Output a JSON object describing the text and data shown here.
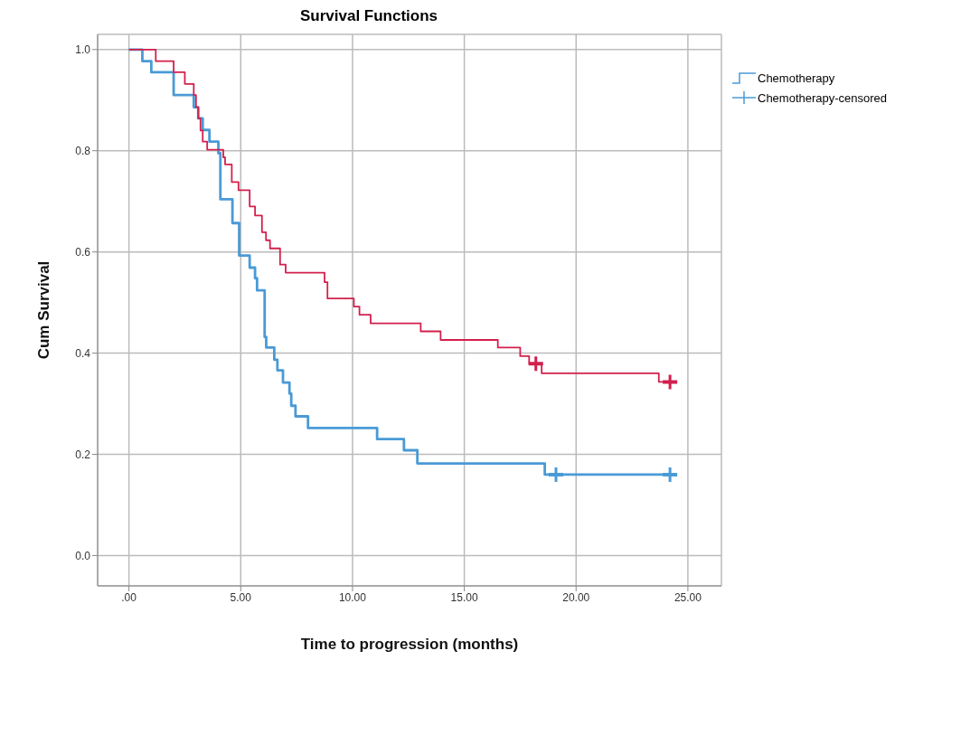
{
  "chart_data": {
    "type": "step",
    "title": "Survival Functions",
    "xlabel": "Time to progression (months)",
    "ylabel": "Cum Survival",
    "xlim": [
      -1.4,
      26.5
    ],
    "ylim": [
      -0.06,
      1.03
    ],
    "xticks": [
      {
        "value": 0,
        "label": ".00"
      },
      {
        "value": 5,
        "label": "5.00"
      },
      {
        "value": 10,
        "label": "10.00"
      },
      {
        "value": 15,
        "label": "15.00"
      },
      {
        "value": 20,
        "label": "20.00"
      },
      {
        "value": 25,
        "label": "25.00"
      }
    ],
    "yticks": [
      {
        "value": 0,
        "label": "0.0"
      },
      {
        "value": 0.2,
        "label": "0.2"
      },
      {
        "value": 0.4,
        "label": "0.4"
      },
      {
        "value": 0.6,
        "label": "0.6"
      },
      {
        "value": 0.8,
        "label": "0.8"
      },
      {
        "value": 1,
        "label": "1.0"
      }
    ],
    "grid": true,
    "legend": "right",
    "series": [
      {
        "name": "Chemotherapy",
        "color": "#4a9ad6",
        "marker": "none",
        "x": [
          0,
          0.6,
          1.0,
          2.0,
          2.9,
          3.1,
          3.3,
          3.6,
          4.0,
          4.09,
          4.63,
          4.93,
          5.4,
          5.64,
          5.73,
          6.07,
          6.14,
          6.5,
          6.64,
          6.89,
          7.18,
          7.26,
          7.45,
          8.01,
          11.1,
          12.3,
          12.9,
          18.6,
          24.2
        ],
        "values": [
          1.0,
          0.977,
          0.955,
          0.91,
          0.886,
          0.864,
          0.841,
          0.818,
          0.795,
          0.704,
          0.657,
          0.593,
          0.569,
          0.548,
          0.524,
          0.432,
          0.411,
          0.387,
          0.366,
          0.342,
          0.32,
          0.296,
          0.275,
          0.252,
          0.23,
          0.208,
          0.182,
          0.16,
          0.16
        ]
      },
      {
        "color": "#d2204d",
        "marker": "none",
        "x": [
          0,
          1.2,
          2.0,
          2.5,
          2.9,
          3.0,
          3.1,
          3.2,
          3.3,
          3.5,
          4.22,
          4.3,
          4.6,
          4.9,
          5.4,
          5.64,
          5.95,
          6.13,
          6.31,
          6.76,
          7.01,
          8.75,
          8.88,
          10.06,
          10.31,
          10.81,
          13.05,
          13.94,
          16.5,
          17.5,
          17.9,
          18.46,
          23.7,
          24.2
        ],
        "values": [
          1.0,
          0.977,
          0.955,
          0.932,
          0.91,
          0.886,
          0.864,
          0.84,
          0.818,
          0.802,
          0.787,
          0.773,
          0.738,
          0.722,
          0.69,
          0.672,
          0.639,
          0.623,
          0.607,
          0.575,
          0.559,
          0.54,
          0.508,
          0.492,
          0.476,
          0.459,
          0.443,
          0.426,
          0.411,
          0.394,
          0.379,
          0.36,
          0.343,
          0.343
        ]
      },
      {
        "name": "Chemotherapy-censored",
        "type": "scatter",
        "color": "#4a9ad6",
        "marker": "cross",
        "x": [
          19.1,
          24.2
        ],
        "values": [
          0.16,
          0.16
        ]
      },
      {
        "type": "scatter",
        "color": "#d2204d",
        "marker": "cross",
        "x": [
          18.2,
          24.2
        ],
        "values": [
          0.379,
          0.343
        ]
      }
    ]
  }
}
